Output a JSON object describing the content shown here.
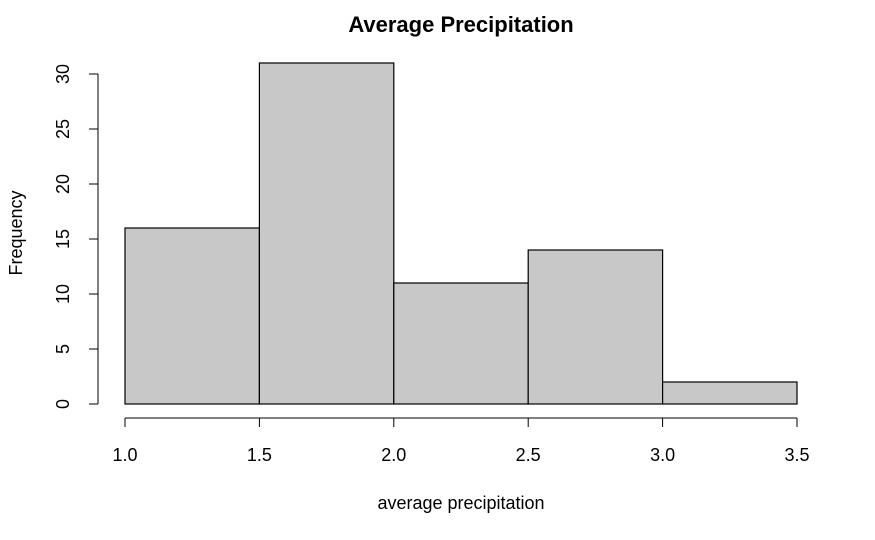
{
  "chart_data": {
    "type": "bar",
    "title": "Average Precipitation",
    "xlabel": "average precipitation",
    "ylabel": "Frequency",
    "bins": [
      {
        "x0": 1.0,
        "x1": 1.5,
        "count": 16
      },
      {
        "x0": 1.5,
        "x1": 2.0,
        "count": 31
      },
      {
        "x0": 2.0,
        "x1": 2.5,
        "count": 11
      },
      {
        "x0": 2.5,
        "x1": 3.0,
        "count": 14
      },
      {
        "x0": 3.0,
        "x1": 3.5,
        "count": 2
      }
    ],
    "x_ticks": [
      "1.0",
      "1.5",
      "2.0",
      "2.5",
      "3.0",
      "3.5"
    ],
    "y_ticks": [
      "0",
      "5",
      "10",
      "15",
      "20",
      "25",
      "30"
    ],
    "xlim": [
      1.0,
      3.5
    ],
    "ylim": [
      0,
      30
    ],
    "grid": false,
    "bar_color": "#c8c8c8",
    "edge_color": "#000000"
  }
}
